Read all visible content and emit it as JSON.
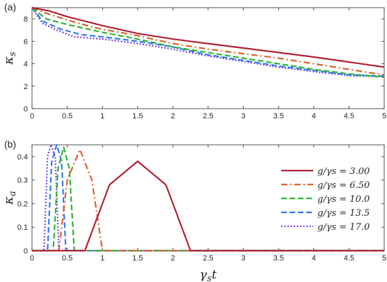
{
  "chart_data": [
    {
      "panel": "(a)",
      "type": "line",
      "xlabel": "",
      "ylabel": "κs",
      "xlim": [
        0,
        5
      ],
      "ylim": [
        0,
        9
      ],
      "xticks": [
        "0",
        "0.5",
        "1",
        "1.5",
        "2",
        "2.5",
        "3",
        "3.5",
        "4",
        "4.5",
        "5"
      ],
      "yticks": [
        "0",
        "2",
        "4",
        "6",
        "8"
      ],
      "grid": false,
      "series": [
        {
          "color": "#b22234",
          "dash": "solid",
          "x": [
            0,
            0.25,
            0.5,
            1,
            1.5,
            2,
            2.5,
            3,
            3.5,
            4,
            4.5,
            5
          ],
          "y": [
            9.0,
            8.7,
            8.2,
            7.4,
            6.7,
            6.2,
            5.8,
            5.4,
            5.0,
            4.6,
            4.15,
            3.7
          ]
        },
        {
          "color": "#d9622b",
          "dash": "dashdot",
          "x": [
            0,
            0.25,
            0.5,
            0.9,
            1.5,
            2,
            2.5,
            3,
            3.5,
            4,
            4.5,
            5
          ],
          "y": [
            9.0,
            8.4,
            7.9,
            7.2,
            6.5,
            5.8,
            5.3,
            4.9,
            4.5,
            4.0,
            3.5,
            3.0
          ]
        },
        {
          "color": "#2db52d",
          "dash": "dashed",
          "x": [
            0,
            0.2,
            0.5,
            1,
            1.5,
            2,
            2.5,
            3,
            3.5,
            4,
            4.5,
            5
          ],
          "y": [
            9.0,
            8.0,
            7.5,
            6.8,
            6.2,
            5.5,
            5.0,
            4.5,
            4.0,
            3.5,
            3.1,
            2.8
          ]
        },
        {
          "color": "#2d7bf0",
          "dash": "dashed",
          "x": [
            0,
            0.15,
            0.4,
            0.7,
            1,
            1.5,
            2,
            2.5,
            3,
            3.5,
            4,
            4.5,
            5
          ],
          "y": [
            9.0,
            7.8,
            7.1,
            6.6,
            6.4,
            6.0,
            5.5,
            4.8,
            4.3,
            3.8,
            3.4,
            3.0,
            2.9
          ]
        },
        {
          "color": "#7a3cf0",
          "dash": "dotted",
          "x": [
            0,
            0.15,
            0.35,
            0.6,
            1,
            1.5,
            2,
            2.5,
            3,
            3.5,
            4,
            4.5,
            5
          ],
          "y": [
            9.0,
            7.6,
            7.0,
            6.4,
            6.2,
            5.8,
            5.3,
            4.7,
            4.2,
            3.7,
            3.3,
            2.95,
            2.85
          ]
        }
      ]
    },
    {
      "panel": "(b)",
      "type": "line",
      "xlabel": "γst",
      "ylabel": "κa",
      "xlim": [
        0,
        5
      ],
      "ylim": [
        0,
        0.45
      ],
      "xticks": [
        "0",
        "0.5",
        "1",
        "1.5",
        "2",
        "2.5",
        "3",
        "3.5",
        "4",
        "4.5",
        "5"
      ],
      "yticks": [
        "0",
        "0.1",
        "0.2",
        "0.3",
        "0.4"
      ],
      "grid": false,
      "legend_position": "right",
      "series": [
        {
          "name": "g/γs = 3.00",
          "color": "#b22234",
          "dash": "solid",
          "x": [
            0,
            0.75,
            1.1,
            1.5,
            1.9,
            2.25,
            5
          ],
          "y": [
            0,
            0,
            0.28,
            0.38,
            0.28,
            0,
            0
          ]
        },
        {
          "name": "g/γs = 6.50",
          "color": "#d9622b",
          "dash": "dashdot",
          "x": [
            0,
            0.38,
            0.5,
            0.68,
            0.85,
            1.0,
            5
          ],
          "y": [
            0,
            0,
            0.3,
            0.43,
            0.3,
            0,
            0
          ]
        },
        {
          "name": "g/γs = 10.0",
          "color": "#2db52d",
          "dash": "dashed",
          "x": [
            0,
            0.3,
            0.37,
            0.45,
            0.53,
            0.6,
            5
          ],
          "y": [
            0,
            0,
            0.35,
            0.44,
            0.35,
            0,
            0
          ]
        },
        {
          "name": "g/γs = 13.5",
          "color": "#2d7bf0",
          "dash": "dashed",
          "x": [
            0,
            0.22,
            0.28,
            0.35,
            0.42,
            0.48,
            5
          ],
          "y": [
            0,
            0,
            0.38,
            0.45,
            0.38,
            0,
            0
          ]
        },
        {
          "name": "g/γs = 17.0",
          "color": "#7a3cf0",
          "dash": "dotted",
          "x": [
            0,
            0.17,
            0.22,
            0.27,
            0.33,
            0.38,
            5
          ],
          "y": [
            0,
            0,
            0.4,
            0.45,
            0.4,
            0,
            0
          ]
        }
      ]
    }
  ]
}
